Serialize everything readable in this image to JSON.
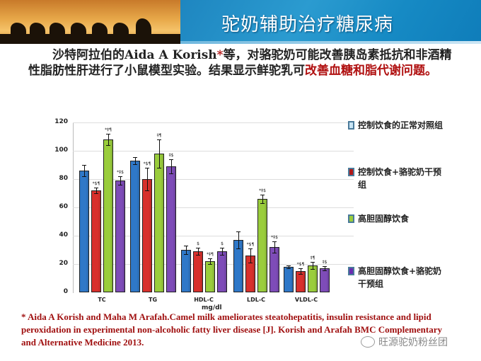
{
  "banner": {
    "title": "驼奶辅助治疗糖尿病"
  },
  "intro": {
    "part1": "沙特阿拉伯的Aida A Korish",
    "star": "*",
    "part2": "等，对骆驼奶可能改善胰岛素抵抗和非酒精性脂肪性肝进行了小鼠模型实验。结果显示鲜驼乳可",
    "highlight": "改善血糖和脂代谢问题。"
  },
  "chart_data": {
    "type": "bar",
    "title": "",
    "xlabel": "mg/dl",
    "ylabel": "",
    "ylim": [
      0,
      120
    ],
    "yticks": [
      0,
      20,
      40,
      60,
      80,
      100,
      120
    ],
    "grid": true,
    "legend_position": "right",
    "categories": [
      "TC",
      "TG",
      "HDL-C",
      "LDL-C",
      "VLDL-C"
    ],
    "series": [
      {
        "name": "控制饮食的正常对照组",
        "color": "#2f78c8",
        "values": [
          86,
          93,
          30,
          37,
          18
        ],
        "errors": [
          4,
          2.5,
          3,
          6,
          1
        ],
        "annotations": [
          "",
          "",
          "",
          "",
          ""
        ]
      },
      {
        "name": "控制饮食+骆驼奶干预组",
        "color": "#d8302c",
        "values": [
          72,
          80,
          29,
          26,
          15
        ],
        "errors": [
          2,
          8,
          2.5,
          5,
          2
        ],
        "annotations": [
          "*$¶",
          "*$¶",
          "$",
          "*$¶",
          "*$¶"
        ]
      },
      {
        "name": "高胆固醇饮食",
        "color": "#9acd3c",
        "values": [
          108,
          98,
          22,
          66,
          19
        ],
        "errors": [
          4,
          10,
          2,
          3,
          2.5
        ],
        "annotations": [
          "*‡¶",
          "‡¶",
          "*‡¶",
          "*‡$",
          "‡¶"
        ]
      },
      {
        "name": "高胆固醇饮食+骆驼奶干预组",
        "color": "#7e4cb8",
        "values": [
          79,
          89,
          29,
          32,
          17
        ],
        "errors": [
          3,
          5,
          2.5,
          4,
          1.5
        ],
        "annotations": [
          "*‡$",
          "‡$",
          "$",
          "*‡$",
          "‡$"
        ]
      }
    ]
  },
  "legend": {
    "items": [
      {
        "label": "控制饮食的正常对照组",
        "swatch": "#c8e4f4"
      },
      {
        "label": "控制饮食+骆驼奶干预组",
        "swatch": "#b01818"
      },
      {
        "label": "高胆固醇饮食",
        "swatch": "#9acd3c"
      },
      {
        "label": "高胆固醇饮食+骆驼奶干预组",
        "swatch": "#6a2cb0"
      }
    ]
  },
  "reference": {
    "text": "* Aida A Korish and Maha M Arafah.Camel milk ameliorates steatohepatitis, insulin resistance and lipid peroxidation in experimental non-alcoholic fatty liver disease [J]. Korish and Arafah BMC Complementary and Alternative Medicine 2013."
  },
  "watermark": {
    "text": "旺源驼奶粉丝团"
  }
}
